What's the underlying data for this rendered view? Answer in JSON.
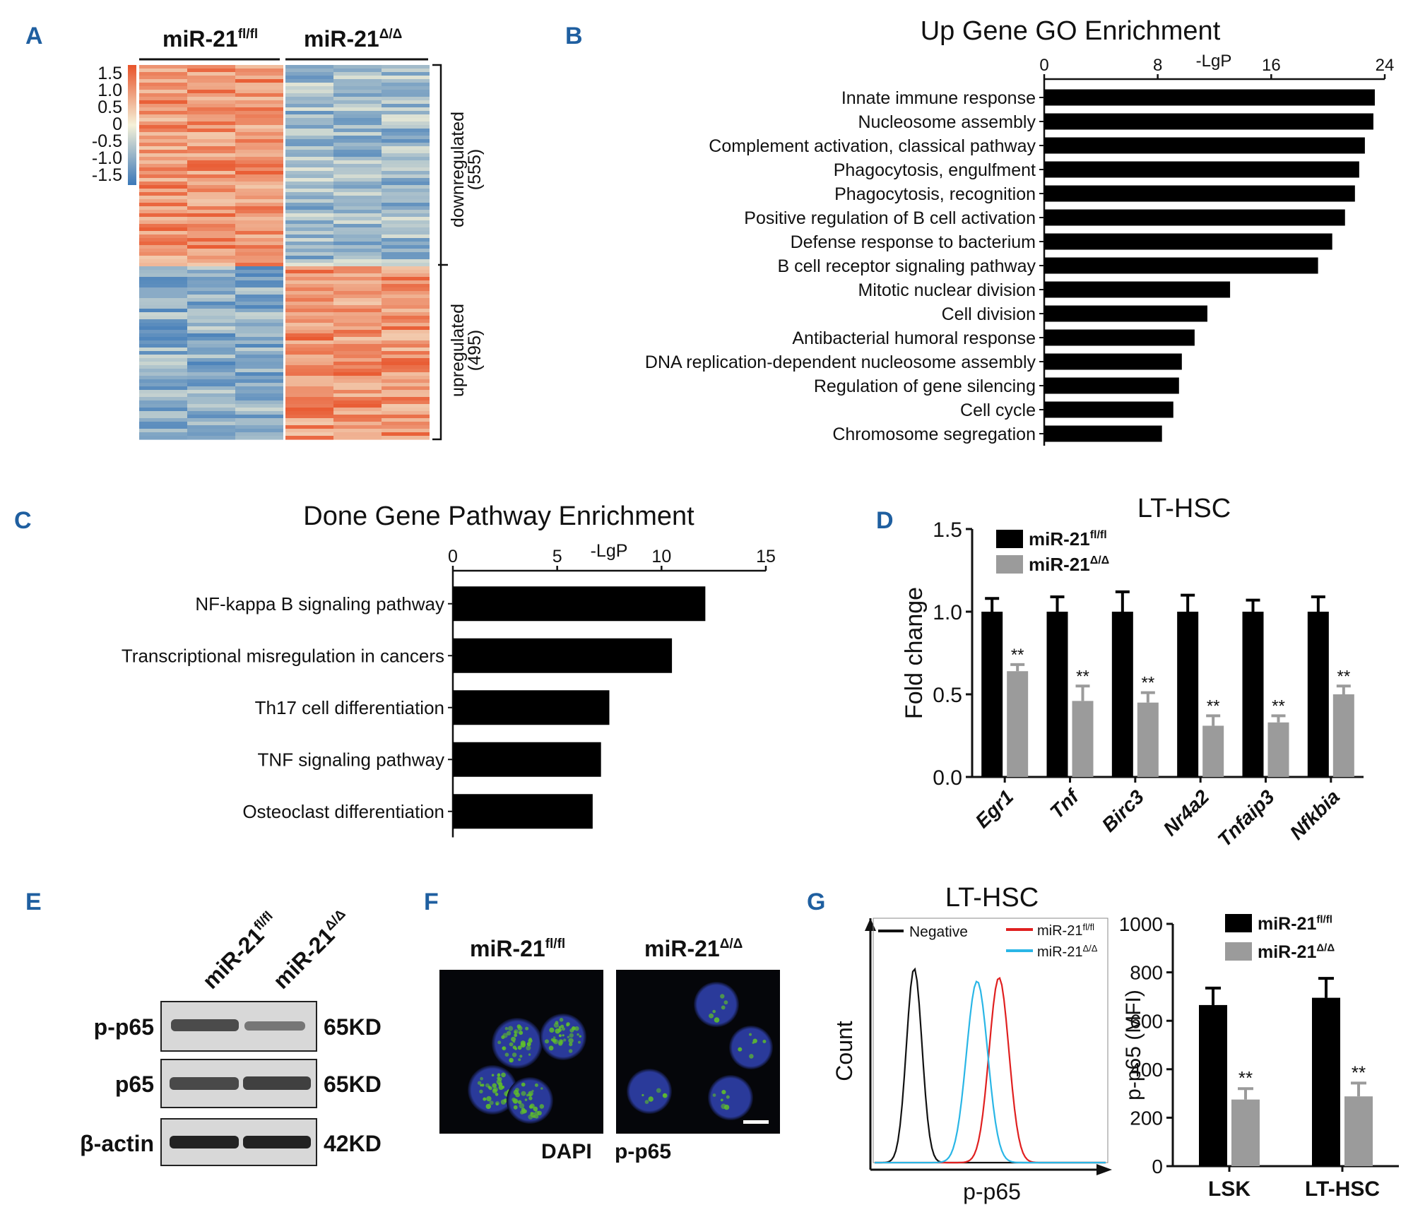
{
  "panels": {
    "A": {
      "label": "A",
      "col_groups": [
        "miR-21",
        "miR-21"
      ],
      "col_sups": [
        "fl/fl",
        "Δ/Δ"
      ],
      "scale": [
        "1.5",
        "1.0",
        "0.5",
        "0",
        "-0.5",
        "-1.0",
        "-1.5"
      ],
      "row_groups": [
        {
          "name": "downregulated",
          "count": "(555)"
        },
        {
          "name": "upregulated",
          "count": "(495)"
        }
      ],
      "colors": {
        "high": "#e8532a",
        "mid": "#f5f1d8",
        "low": "#3b78b8"
      }
    },
    "B": {
      "label": "B"
    },
    "C": {
      "label": "C"
    },
    "D": {
      "label": "D"
    },
    "E": {
      "label": "E",
      "lanes": [
        {
          "name": "miR-21",
          "sup": "fl/fl"
        },
        {
          "name": "miR-21",
          "sup": "Δ/Δ"
        }
      ],
      "rows": [
        {
          "protein": "p-p65",
          "kd": "65KD"
        },
        {
          "protein": "p65",
          "kd": "65KD"
        },
        {
          "protein": "β-actin",
          "kd": "42KD"
        }
      ]
    },
    "F": {
      "label": "F",
      "images": [
        {
          "name": "miR-21",
          "sup": "fl/fl"
        },
        {
          "name": "miR-21",
          "sup": "Δ/Δ"
        }
      ],
      "stains": [
        "DAPI",
        "p-p65"
      ],
      "colors": {
        "dapi": "#2a3a9a",
        "p65": "#5fbf2a"
      }
    },
    "G": {
      "label": "G",
      "hist_title": "LT-HSC",
      "hist_xlabel": "p-p65",
      "hist_ylabel": "Count",
      "hist_legend": [
        {
          "name": "Negative",
          "sup": "",
          "color": "#111111"
        },
        {
          "name": "miR-21",
          "sup": "fl/fl",
          "color": "#e02020"
        },
        {
          "name": "miR-21",
          "sup": "Δ/Δ",
          "color": "#2ab6e6"
        }
      ]
    }
  },
  "chart_data": [
    {
      "id": "B",
      "type": "bar",
      "orientation": "horizontal",
      "title": "Up Gene GO Enrichment",
      "xlabel": "-LgP",
      "xlim": [
        0,
        24
      ],
      "xticks": [
        0,
        8,
        16,
        24
      ],
      "categories": [
        "Innate immune response",
        "Nucleosome assembly",
        "Complement activation, classical pathway",
        "Phagocytosis, engulfment",
        "Phagocytosis, recognition",
        "Positive regulation of B cell activation",
        "Defense response to bacterium",
        "B cell receptor signaling pathway",
        "Mitotic nuclear division",
        "Cell division",
        "Antibacterial humoral response",
        "DNA replication-dependent nucleosome assembly",
        "Regulation of gene silencing",
        "Cell cycle",
        "Chromosome segregation"
      ],
      "values": [
        23.3,
        23.2,
        22.6,
        22.2,
        21.9,
        21.2,
        20.3,
        19.3,
        13.1,
        11.5,
        10.6,
        9.7,
        9.5,
        9.1,
        8.3
      ]
    },
    {
      "id": "C",
      "type": "bar",
      "orientation": "horizontal",
      "title": "Done Gene Pathway Enrichment",
      "xlabel": "-LgP",
      "xlim": [
        0,
        15
      ],
      "xticks": [
        0,
        5,
        10,
        15
      ],
      "categories": [
        "NF-kappa B signaling pathway",
        "Transcriptional misregulation in cancers",
        "Th17 cell differentiation",
        "TNF signaling pathway",
        "Osteoclast differentiation"
      ],
      "values": [
        12.1,
        10.5,
        7.5,
        7.1,
        6.7
      ]
    },
    {
      "id": "D",
      "type": "bar",
      "title": "LT-HSC",
      "ylabel": "Fold change",
      "ylim": [
        0,
        1.5
      ],
      "yticks": [
        "0.0",
        "0.5",
        "1.0",
        "1.5"
      ],
      "categories": [
        "Egr1",
        "Tnf",
        "Birc3",
        "Nr4a2",
        "Tnfaip3",
        "Nfkbia"
      ],
      "series": [
        {
          "name": "miR-21",
          "sup": "fl/fl",
          "color": "#000000",
          "values": [
            1.0,
            1.0,
            1.0,
            1.0,
            1.0,
            1.0
          ],
          "errors": [
            0.08,
            0.09,
            0.12,
            0.1,
            0.07,
            0.09
          ]
        },
        {
          "name": "miR-21",
          "sup": "Δ/Δ",
          "color": "#9b9b9b",
          "values": [
            0.64,
            0.46,
            0.45,
            0.31,
            0.33,
            0.5
          ],
          "errors": [
            0.04,
            0.09,
            0.06,
            0.06,
            0.04,
            0.05
          ]
        }
      ],
      "significance": [
        "**",
        "**",
        "**",
        "**",
        "**",
        "**"
      ]
    },
    {
      "id": "G-bar",
      "type": "bar",
      "ylabel": "p-p65 (MFI)",
      "ylim": [
        0,
        1000
      ],
      "yticks": [
        "0",
        "200",
        "400",
        "600",
        "800",
        "1000"
      ],
      "categories": [
        "LSK",
        "LT-HSC"
      ],
      "series": [
        {
          "name": "miR-21",
          "sup": "fl/fl",
          "color": "#000000",
          "values": [
            665,
            695
          ],
          "errors": [
            70,
            80
          ]
        },
        {
          "name": "miR-21",
          "sup": "Δ/Δ",
          "color": "#9b9b9b",
          "values": [
            275,
            288
          ],
          "errors": [
            45,
            55
          ]
        }
      ],
      "significance": [
        "**",
        "**"
      ]
    }
  ]
}
